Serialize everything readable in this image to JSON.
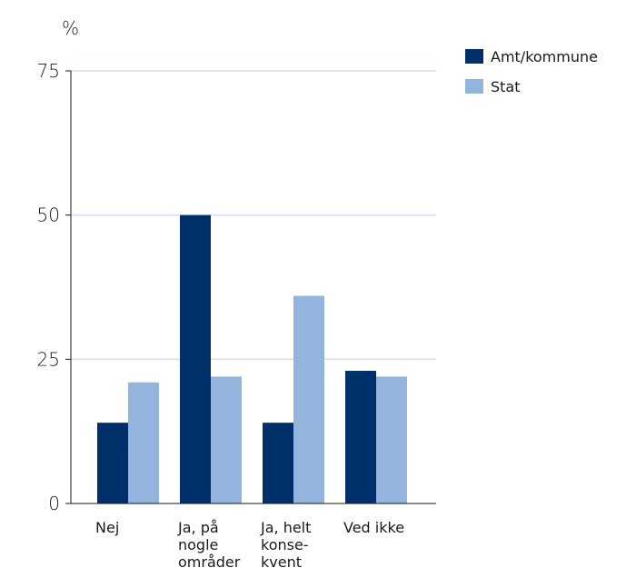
{
  "chart_data": {
    "type": "bar",
    "unit": "%",
    "categories": [
      [
        "Nej"
      ],
      [
        "Ja, på",
        "nogle",
        "områder"
      ],
      [
        "Ja, helt",
        "konse-",
        "kvent"
      ],
      [
        "Ved ikke"
      ]
    ],
    "series": [
      {
        "name": "Amt/kommune",
        "color": "#003069",
        "values": [
          14,
          50,
          14,
          23
        ]
      },
      {
        "name": "Stat",
        "color": "#93b4dc",
        "values": [
          21,
          22,
          36,
          22
        ]
      }
    ],
    "yticks": [
      0,
      25,
      50,
      75
    ],
    "ylim": [
      0,
      75
    ],
    "grid": true,
    "legend_position": "top-right"
  }
}
